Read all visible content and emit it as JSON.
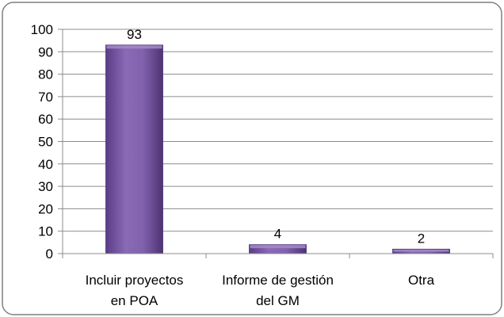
{
  "chart_data": {
    "type": "bar",
    "categories": [
      [
        "Incluir proyectos",
        "en POA"
      ],
      [
        "Informe de gestión",
        "del GM"
      ],
      [
        "Otra"
      ]
    ],
    "values": [
      93,
      4,
      2
    ],
    "data_labels": [
      "93",
      "4",
      "2"
    ],
    "ylim": [
      0,
      100
    ],
    "yticks": [
      0,
      10,
      20,
      30,
      40,
      50,
      60,
      70,
      80,
      90,
      100
    ],
    "grid": true,
    "legend": "none",
    "title": "",
    "xlabel": "",
    "ylabel": "",
    "colors": {
      "bar_fill": "#7b5aa6",
      "bar_light": "#a48bc8",
      "bar_dark": "#4e3373",
      "grid": "#8c8c8c",
      "border": "#7f7f7f",
      "background": "#ffffff"
    }
  }
}
